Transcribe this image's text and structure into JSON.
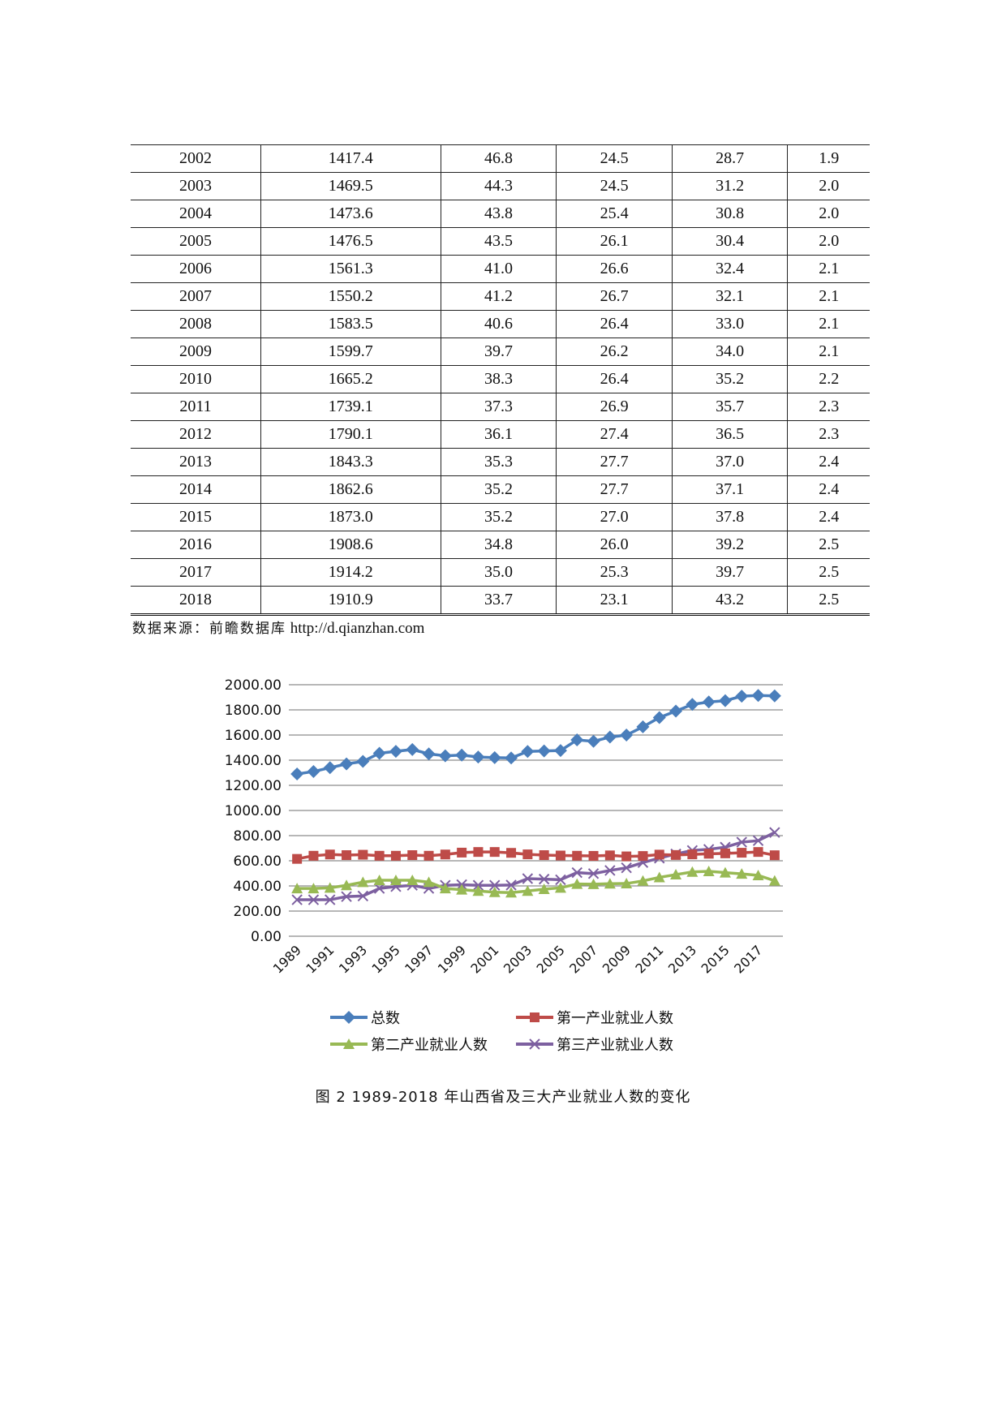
{
  "table": {
    "rows": [
      [
        "2002",
        "1417.4",
        "46.8",
        "24.5",
        "28.7",
        "1.9"
      ],
      [
        "2003",
        "1469.5",
        "44.3",
        "24.5",
        "31.2",
        "2.0"
      ],
      [
        "2004",
        "1473.6",
        "43.8",
        "25.4",
        "30.8",
        "2.0"
      ],
      [
        "2005",
        "1476.5",
        "43.5",
        "26.1",
        "30.4",
        "2.0"
      ],
      [
        "2006",
        "1561.3",
        "41.0",
        "26.6",
        "32.4",
        "2.1"
      ],
      [
        "2007",
        "1550.2",
        "41.2",
        "26.7",
        "32.1",
        "2.1"
      ],
      [
        "2008",
        "1583.5",
        "40.6",
        "26.4",
        "33.0",
        "2.1"
      ],
      [
        "2009",
        "1599.7",
        "39.7",
        "26.2",
        "34.0",
        "2.1"
      ],
      [
        "2010",
        "1665.2",
        "38.3",
        "26.4",
        "35.2",
        "2.2"
      ],
      [
        "2011",
        "1739.1",
        "37.3",
        "26.9",
        "35.7",
        "2.3"
      ],
      [
        "2012",
        "1790.1",
        "36.1",
        "27.4",
        "36.5",
        "2.3"
      ],
      [
        "2013",
        "1843.3",
        "35.3",
        "27.7",
        "37.0",
        "2.4"
      ],
      [
        "2014",
        "1862.6",
        "35.2",
        "27.7",
        "37.1",
        "2.4"
      ],
      [
        "2015",
        "1873.0",
        "35.2",
        "27.0",
        "37.8",
        "2.4"
      ],
      [
        "2016",
        "1908.6",
        "34.8",
        "26.0",
        "39.2",
        "2.5"
      ],
      [
        "2017",
        "1914.2",
        "35.0",
        "25.3",
        "39.7",
        "2.5"
      ],
      [
        "2018",
        "1910.9",
        "33.7",
        "23.1",
        "43.2",
        "2.5"
      ]
    ]
  },
  "source": {
    "label": "数据来源：前瞻数据库",
    "url": "http://d.qianzhan.com"
  },
  "chart_data": {
    "type": "line",
    "title": "",
    "x": [
      1989,
      1990,
      1991,
      1992,
      1993,
      1994,
      1995,
      1996,
      1997,
      1998,
      1999,
      2000,
      2001,
      2002,
      2003,
      2004,
      2005,
      2006,
      2007,
      2008,
      2009,
      2010,
      2011,
      2012,
      2013,
      2014,
      2015,
      2016,
      2017,
      2018
    ],
    "xtick_labels": [
      "1989",
      "1991",
      "1993",
      "1995",
      "1997",
      "1999",
      "2001",
      "2003",
      "2005",
      "2007",
      "2009",
      "2011",
      "2013",
      "2015",
      "2017"
    ],
    "ytick_labels": [
      "0.00",
      "200.00",
      "400.00",
      "600.00",
      "800.00",
      "1000.00",
      "1200.00",
      "1400.00",
      "1600.00",
      "1800.00",
      "2000.00"
    ],
    "ylim": [
      0,
      2000
    ],
    "grid": true,
    "legend_position": "bottom",
    "series": [
      {
        "name": "总数",
        "color": "#4a7ebb",
        "marker": "diamond",
        "values": [
          1290,
          1310,
          1340,
          1370,
          1390,
          1455,
          1470,
          1485,
          1450,
          1435,
          1440,
          1425,
          1420,
          1417.4,
          1469.5,
          1473.6,
          1476.5,
          1561.3,
          1550.2,
          1583.5,
          1599.7,
          1665.2,
          1739.1,
          1790.1,
          1843.3,
          1862.6,
          1873.0,
          1908.6,
          1914.2,
          1910.9
        ]
      },
      {
        "name": "第一产业就业人数",
        "color": "#be4b48",
        "marker": "square",
        "values": [
          615,
          640,
          650,
          645,
          648,
          640,
          640,
          645,
          640,
          650,
          665,
          670,
          670,
          663,
          651,
          645,
          642,
          640,
          639,
          643,
          635,
          638,
          649,
          646,
          651,
          656,
          659,
          664,
          670,
          644
        ]
      },
      {
        "name": "第二产业就业人数",
        "color": "#98b954",
        "marker": "triangle",
        "values": [
          380,
          380,
          385,
          405,
          430,
          445,
          445,
          445,
          430,
          380,
          370,
          360,
          350,
          347,
          360,
          374,
          385,
          415,
          414,
          418,
          419,
          440,
          468,
          490,
          511,
          516,
          506,
          496,
          484,
          441
        ]
      },
      {
        "name": "第三产业就业人数",
        "color": "#7d60a0",
        "marker": "x",
        "values": [
          290,
          290,
          290,
          315,
          320,
          380,
          395,
          405,
          380,
          405,
          410,
          405,
          405,
          407,
          458,
          454,
          449,
          506,
          498,
          523,
          544,
          586,
          621,
          654,
          682,
          691,
          708,
          748,
          760,
          825
        ]
      }
    ]
  },
  "caption": "图 2  1989-2018 年山西省及三大产业就业人数的变化"
}
